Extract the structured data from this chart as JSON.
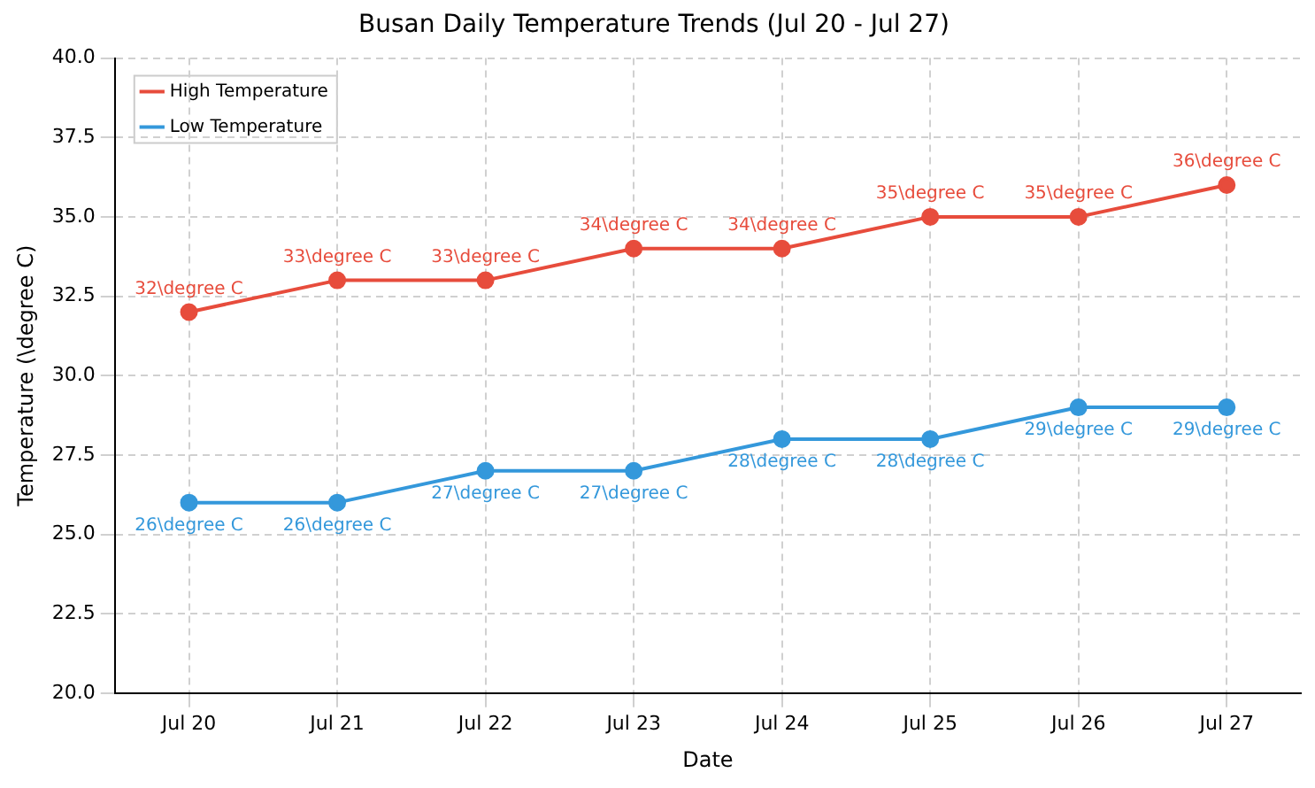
{
  "chart_data": {
    "type": "line",
    "title": "Busan Daily Temperature Trends (Jul 20 - Jul 27)",
    "xlabel": "Date",
    "ylabel": "Temperature (\\degree C)",
    "categories": [
      "Jul 20",
      "Jul 21",
      "Jul 22",
      "Jul 23",
      "Jul 24",
      "Jul 25",
      "Jul 26",
      "Jul 27"
    ],
    "series": [
      {
        "name": "High Temperature",
        "color": "#e74c3c",
        "values": [
          32,
          33,
          33,
          34,
          34,
          35,
          35,
          36
        ],
        "value_labels": [
          "32\\degree C",
          "33\\degree C",
          "33\\degree C",
          "34\\degree C",
          "34\\degree C",
          "35\\degree C",
          "35\\degree C",
          "36\\degree C"
        ]
      },
      {
        "name": "Low Temperature",
        "color": "#3498db",
        "values": [
          26,
          26,
          27,
          27,
          28,
          28,
          29,
          29
        ],
        "value_labels": [
          "26\\degree C",
          "26\\degree C",
          "27\\degree C",
          "27\\degree C",
          "28\\degree C",
          "28\\degree C",
          "29\\degree C",
          "29\\degree C"
        ]
      }
    ],
    "ylim": [
      20,
      40
    ],
    "yticks": [
      {
        "value": 20,
        "label": "20.0"
      },
      {
        "value": 22.5,
        "label": "22.5"
      },
      {
        "value": 25,
        "label": "25.0"
      },
      {
        "value": 27.5,
        "label": "27.5"
      },
      {
        "value": 30,
        "label": "30.0"
      },
      {
        "value": 32.5,
        "label": "32.5"
      },
      {
        "value": 35,
        "label": "35.0"
      },
      {
        "value": 37.5,
        "label": "37.5"
      },
      {
        "value": 40,
        "label": "40.0"
      }
    ],
    "grid": true,
    "legend": "top left",
    "marker": "circle",
    "line_style": "solid"
  }
}
